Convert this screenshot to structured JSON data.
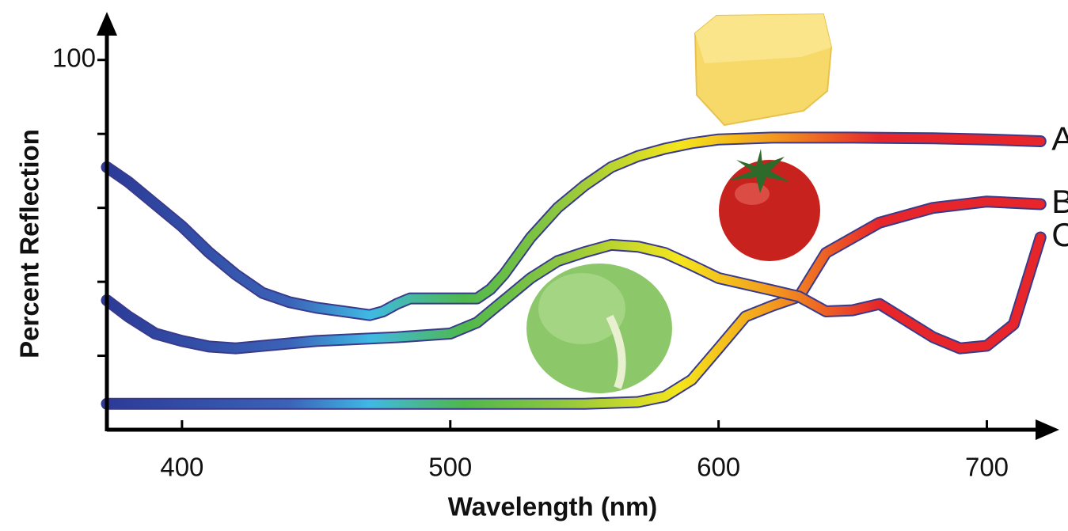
{
  "chart_data": {
    "type": "line",
    "xlabel": "Wavelength (nm)",
    "ylabel": "Percent Reflection",
    "xlim": [
      372,
      727
    ],
    "ylim": [
      0,
      113
    ],
    "xticks": [
      400,
      500,
      600,
      700
    ],
    "yticks": [
      100
    ],
    "yminor_ticks": [
      20,
      40,
      60,
      80
    ],
    "grid": false,
    "spectrum_colors": [
      [
        372,
        "#2b3b97"
      ],
      [
        440,
        "#3b63b8"
      ],
      [
        470,
        "#3fb9e3"
      ],
      [
        505,
        "#4fb84c"
      ],
      [
        540,
        "#8cc63f"
      ],
      [
        585,
        "#f4e61c"
      ],
      [
        620,
        "#f39a1e"
      ],
      [
        660,
        "#e6262b"
      ],
      [
        727,
        "#e6262b"
      ]
    ],
    "outline_color": "#3a3a8c",
    "series": [
      {
        "name": "A",
        "x": [
          372,
          380,
          390,
          400,
          410,
          420,
          430,
          440,
          450,
          460,
          470,
          475,
          480,
          485,
          490,
          500,
          510,
          515,
          520,
          530,
          540,
          550,
          560,
          570,
          580,
          590,
          600,
          620,
          650,
          680,
          700,
          720
        ],
        "values": [
          71,
          67,
          61,
          55,
          48,
          42,
          37,
          34.5,
          33,
          32,
          31,
          32,
          34,
          35.5,
          35.5,
          35.5,
          35.5,
          38,
          42,
          52,
          60,
          66,
          71,
          74,
          76,
          77.5,
          78.5,
          79,
          79,
          78.8,
          78.5,
          78
        ]
      },
      {
        "name": "B",
        "x": [
          372,
          400,
          450,
          500,
          550,
          570,
          580,
          590,
          600,
          610,
          620,
          630,
          640,
          660,
          680,
          700,
          720
        ],
        "values": [
          7,
          7,
          7,
          7,
          7,
          7.5,
          9,
          13.5,
          22,
          30.6,
          33.5,
          36,
          47.8,
          56,
          60,
          61.7,
          61
        ]
      },
      {
        "name": "C",
        "x": [
          372,
          380,
          390,
          400,
          410,
          420,
          450,
          480,
          500,
          510,
          520,
          530,
          540,
          550,
          560,
          570,
          580,
          590,
          600,
          620,
          630,
          640,
          650,
          660,
          670,
          680,
          690,
          700,
          710,
          720
        ],
        "values": [
          35,
          30.6,
          26,
          24,
          22.5,
          22,
          24,
          25,
          26,
          29,
          35,
          41,
          45.6,
          48,
          50,
          49.5,
          47.8,
          44.5,
          41,
          37.7,
          36,
          32,
          32.3,
          34,
          29.5,
          25,
          22,
          22.7,
          28.5,
          52
        ]
      }
    ]
  }
}
